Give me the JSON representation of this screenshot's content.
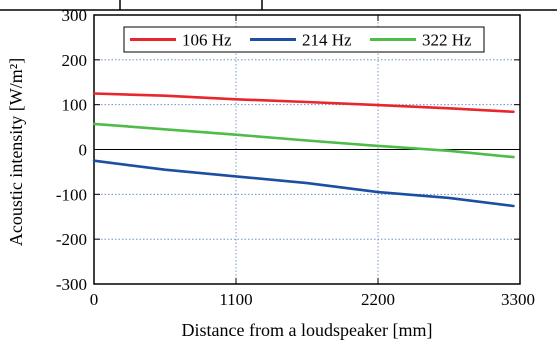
{
  "chart_data": {
    "type": "line",
    "title": "",
    "xlabel": "Distance from a loudspeaker [mm]",
    "ylabel": "Acoustic intensity [W/m²]",
    "xlim": [
      0,
      3300
    ],
    "ylim": [
      -300,
      300
    ],
    "x_ticks": [
      "0",
      "1100",
      "2200",
      "3300"
    ],
    "y_ticks": [
      "300",
      "200",
      "100",
      "0",
      "-100",
      "-200",
      "-300"
    ],
    "grid": true,
    "legend_position": "top",
    "zero_line": true,
    "series": [
      {
        "name": "106 Hz",
        "color": "#e8262b",
        "x": [
          0,
          550,
          1100,
          1650,
          2200,
          2750,
          3250
        ],
        "y": [
          125,
          120,
          112,
          106,
          99,
          92,
          84
        ]
      },
      {
        "name": "214 Hz",
        "color": "#1c4fa1",
        "x": [
          0,
          550,
          1100,
          1650,
          2200,
          2750,
          3250
        ],
        "y": [
          -25,
          -45,
          -60,
          -75,
          -95,
          -108,
          -126
        ]
      },
      {
        "name": "322 Hz",
        "color": "#4fbc4a",
        "x": [
          0,
          550,
          1100,
          1650,
          2200,
          2750,
          3250
        ],
        "y": [
          57,
          45,
          33,
          20,
          8,
          -3,
          -17
        ]
      }
    ]
  }
}
